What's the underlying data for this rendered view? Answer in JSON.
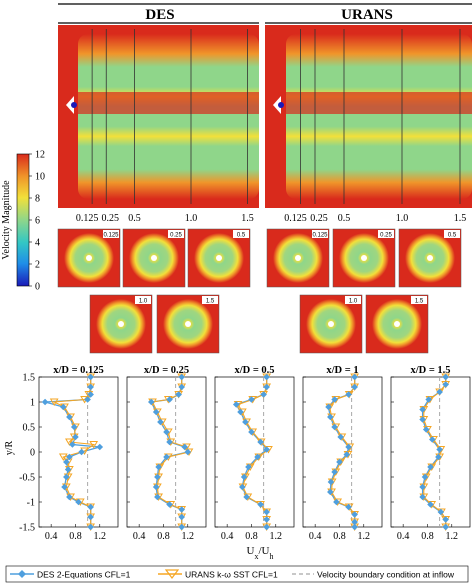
{
  "headers": {
    "left": "DES",
    "right": "URANS"
  },
  "colorbar": {
    "label": "Velocity Magnitude",
    "ticks": [
      "12",
      "10",
      "8",
      "6",
      "4",
      "2",
      "0"
    ],
    "min": 0,
    "max": 12,
    "colors": [
      "#1a1ab8",
      "#1f8ee8",
      "#33c7c4",
      "#8fd68a",
      "#f2e03a",
      "#f0952a",
      "#d92a1c"
    ]
  },
  "field_xticks": [
    "0.125",
    "0.25",
    "0.5",
    "1.0",
    "1.5"
  ],
  "slice_labels": [
    "0.125",
    "0.25",
    "0.5",
    "1.0",
    "1.5"
  ],
  "chart_data": {
    "type": "line",
    "xlabel": "U_x/U_h",
    "ylabel": "y/R",
    "xticks": [
      "0.4",
      "0.8",
      "1.2"
    ],
    "xlim": [
      0.2,
      1.5
    ],
    "ylim": [
      -1.5,
      1.5
    ],
    "yticks": [
      "1.5",
      "1",
      "0.5",
      "0",
      "-0.5",
      "-1",
      "-1.5"
    ],
    "colors": {
      "des": "#4f9fde",
      "urans": "#f5a623",
      "bc": "#a8a8a8"
    },
    "legend": [
      "DES 2-Equations CFL=1",
      "URANS k-ω SST CFL=1",
      "Velocity boundary condition at inflow"
    ],
    "inflow_value": 1.0,
    "panels": [
      {
        "title": "x/D = 0.125",
        "des": [
          [
            1.05,
            1.5
          ],
          [
            1.05,
            1.3
          ],
          [
            1.05,
            1.15
          ],
          [
            1.0,
            1.05
          ],
          [
            0.3,
            1.0
          ],
          [
            0.6,
            0.9
          ],
          [
            0.7,
            0.7
          ],
          [
            0.78,
            0.5
          ],
          [
            0.8,
            0.3
          ],
          [
            0.75,
            0.15
          ],
          [
            1.2,
            0.1
          ],
          [
            0.9,
            0.0
          ],
          [
            0.7,
            -0.1
          ],
          [
            0.65,
            -0.2
          ],
          [
            0.68,
            -0.35
          ],
          [
            0.65,
            -0.5
          ],
          [
            0.62,
            -0.7
          ],
          [
            0.7,
            -0.9
          ],
          [
            0.85,
            -1.0
          ],
          [
            1.05,
            -1.1
          ],
          [
            1.05,
            -1.3
          ],
          [
            1.05,
            -1.5
          ]
        ],
        "urans": [
          [
            1.05,
            1.5
          ],
          [
            1.05,
            1.3
          ],
          [
            1.02,
            1.15
          ],
          [
            0.95,
            1.05
          ],
          [
            0.45,
            1.0
          ],
          [
            0.62,
            0.9
          ],
          [
            0.72,
            0.7
          ],
          [
            0.8,
            0.5
          ],
          [
            0.78,
            0.3
          ],
          [
            0.7,
            0.2
          ],
          [
            1.1,
            0.15
          ],
          [
            0.95,
            0.02
          ],
          [
            0.6,
            -0.1
          ],
          [
            0.68,
            -0.2
          ],
          [
            0.7,
            -0.35
          ],
          [
            0.68,
            -0.5
          ],
          [
            0.65,
            -0.7
          ],
          [
            0.72,
            -0.9
          ],
          [
            0.88,
            -1.0
          ],
          [
            1.05,
            -1.1
          ],
          [
            1.05,
            -1.3
          ],
          [
            1.05,
            -1.5
          ]
        ]
      },
      {
        "title": "x/D = 0.25",
        "des": [
          [
            1.1,
            1.5
          ],
          [
            1.1,
            1.3
          ],
          [
            1.05,
            1.15
          ],
          [
            0.9,
            1.05
          ],
          [
            0.6,
            1.0
          ],
          [
            0.68,
            0.8
          ],
          [
            0.75,
            0.6
          ],
          [
            0.85,
            0.4
          ],
          [
            0.9,
            0.2
          ],
          [
            1.15,
            0.1
          ],
          [
            1.2,
            0.0
          ],
          [
            0.85,
            -0.1
          ],
          [
            0.72,
            -0.3
          ],
          [
            0.7,
            -0.5
          ],
          [
            0.68,
            -0.7
          ],
          [
            0.7,
            -0.9
          ],
          [
            0.9,
            -1.05
          ],
          [
            1.1,
            -1.15
          ],
          [
            1.1,
            -1.3
          ],
          [
            1.1,
            -1.5
          ]
        ],
        "urans": [
          [
            1.1,
            1.5
          ],
          [
            1.1,
            1.3
          ],
          [
            1.05,
            1.15
          ],
          [
            0.88,
            1.05
          ],
          [
            0.62,
            1.0
          ],
          [
            0.7,
            0.8
          ],
          [
            0.78,
            0.6
          ],
          [
            0.88,
            0.4
          ],
          [
            0.92,
            0.2
          ],
          [
            1.18,
            0.1
          ],
          [
            1.22,
            0.0
          ],
          [
            0.88,
            -0.1
          ],
          [
            0.74,
            -0.3
          ],
          [
            0.72,
            -0.5
          ],
          [
            0.7,
            -0.7
          ],
          [
            0.72,
            -0.9
          ],
          [
            0.92,
            -1.05
          ],
          [
            1.1,
            -1.15
          ],
          [
            1.1,
            -1.3
          ],
          [
            1.1,
            -1.5
          ]
        ]
      },
      {
        "title": "x/D = 0.5",
        "des": [
          [
            1.05,
            1.5
          ],
          [
            1.05,
            1.3
          ],
          [
            1.0,
            1.15
          ],
          [
            0.8,
            1.05
          ],
          [
            0.55,
            0.95
          ],
          [
            0.62,
            0.8
          ],
          [
            0.7,
            0.6
          ],
          [
            0.8,
            0.4
          ],
          [
            0.95,
            0.2
          ],
          [
            1.05,
            0.05
          ],
          [
            0.9,
            -0.1
          ],
          [
            0.75,
            -0.3
          ],
          [
            0.68,
            -0.5
          ],
          [
            0.65,
            -0.7
          ],
          [
            0.72,
            -0.9
          ],
          [
            0.95,
            -1.05
          ],
          [
            1.05,
            -1.2
          ],
          [
            1.05,
            -1.35
          ],
          [
            1.05,
            -1.5
          ]
        ],
        "urans": [
          [
            1.05,
            1.5
          ],
          [
            1.05,
            1.3
          ],
          [
            1.0,
            1.15
          ],
          [
            0.82,
            1.05
          ],
          [
            0.58,
            0.95
          ],
          [
            0.65,
            0.8
          ],
          [
            0.72,
            0.6
          ],
          [
            0.82,
            0.4
          ],
          [
            0.96,
            0.2
          ],
          [
            1.08,
            0.05
          ],
          [
            0.92,
            -0.1
          ],
          [
            0.78,
            -0.3
          ],
          [
            0.7,
            -0.5
          ],
          [
            0.66,
            -0.7
          ],
          [
            0.74,
            -0.9
          ],
          [
            0.95,
            -1.05
          ],
          [
            1.05,
            -1.2
          ],
          [
            1.05,
            -1.35
          ],
          [
            1.05,
            -1.5
          ]
        ]
      },
      {
        "title": "x/D = 1",
        "des": [
          [
            1.05,
            1.5
          ],
          [
            1.05,
            1.3
          ],
          [
            0.95,
            1.15
          ],
          [
            0.72,
            1.05
          ],
          [
            0.62,
            0.9
          ],
          [
            0.65,
            0.7
          ],
          [
            0.72,
            0.5
          ],
          [
            0.82,
            0.3
          ],
          [
            0.95,
            0.1
          ],
          [
            0.92,
            -0.05
          ],
          [
            0.8,
            -0.2
          ],
          [
            0.72,
            -0.4
          ],
          [
            0.66,
            -0.6
          ],
          [
            0.65,
            -0.8
          ],
          [
            0.75,
            -1.0
          ],
          [
            0.95,
            -1.1
          ],
          [
            1.05,
            -1.25
          ],
          [
            1.05,
            -1.4
          ],
          [
            1.05,
            -1.5
          ]
        ],
        "urans": [
          [
            1.05,
            1.5
          ],
          [
            1.05,
            1.3
          ],
          [
            0.96,
            1.15
          ],
          [
            0.74,
            1.05
          ],
          [
            0.64,
            0.9
          ],
          [
            0.67,
            0.7
          ],
          [
            0.74,
            0.5
          ],
          [
            0.84,
            0.3
          ],
          [
            0.97,
            0.1
          ],
          [
            0.94,
            -0.05
          ],
          [
            0.82,
            -0.2
          ],
          [
            0.74,
            -0.4
          ],
          [
            0.68,
            -0.6
          ],
          [
            0.67,
            -0.8
          ],
          [
            0.77,
            -1.0
          ],
          [
            0.96,
            -1.1
          ],
          [
            1.05,
            -1.25
          ],
          [
            1.05,
            -1.4
          ],
          [
            1.05,
            -1.5
          ]
        ]
      },
      {
        "title": "x/D = 1.5",
        "des": [
          [
            1.1,
            1.5
          ],
          [
            1.1,
            1.35
          ],
          [
            1.0,
            1.2
          ],
          [
            0.82,
            1.05
          ],
          [
            0.72,
            0.85
          ],
          [
            0.72,
            0.65
          ],
          [
            0.78,
            0.45
          ],
          [
            0.88,
            0.25
          ],
          [
            1.0,
            0.05
          ],
          [
            0.98,
            -0.1
          ],
          [
            0.85,
            -0.3
          ],
          [
            0.76,
            -0.5
          ],
          [
            0.72,
            -0.7
          ],
          [
            0.72,
            -0.9
          ],
          [
            0.85,
            -1.05
          ],
          [
            1.02,
            -1.2
          ],
          [
            1.1,
            -1.35
          ],
          [
            1.1,
            -1.5
          ]
        ],
        "urans": [
          [
            1.1,
            1.5
          ],
          [
            1.1,
            1.35
          ],
          [
            1.0,
            1.2
          ],
          [
            0.84,
            1.05
          ],
          [
            0.74,
            0.85
          ],
          [
            0.74,
            0.65
          ],
          [
            0.8,
            0.45
          ],
          [
            0.9,
            0.25
          ],
          [
            1.02,
            0.05
          ],
          [
            1.0,
            -0.1
          ],
          [
            0.87,
            -0.3
          ],
          [
            0.78,
            -0.5
          ],
          [
            0.74,
            -0.7
          ],
          [
            0.74,
            -0.9
          ],
          [
            0.87,
            -1.05
          ],
          [
            1.03,
            -1.2
          ],
          [
            1.1,
            -1.35
          ],
          [
            1.1,
            -1.5
          ]
        ]
      }
    ]
  }
}
